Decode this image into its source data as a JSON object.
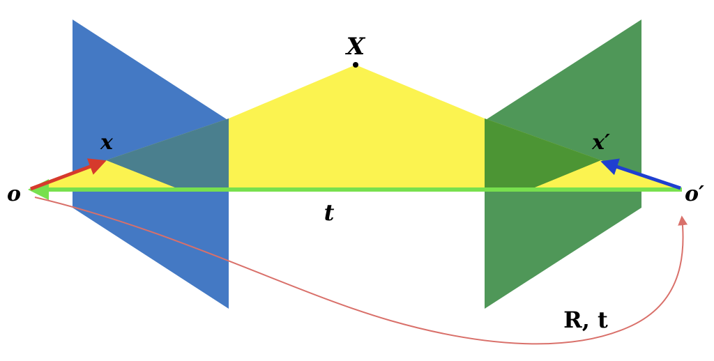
{
  "labels": {
    "point_X": "X",
    "image_point_x": "x",
    "image_point_x_prime": "x′",
    "center_o": "o",
    "center_o_prime": "o′",
    "baseline_t": "t",
    "transform": "R, t"
  },
  "colors": {
    "left_plane": "#4479c4",
    "right_plane": "#4f9758",
    "epipolar_plane": "#fbf350",
    "baseline": "#78e04e",
    "ray_left": "#d63a2c",
    "ray_right": "#1f3fd0",
    "transform_arc": "#d9706a",
    "overlap_left": "#4a7f8e",
    "overlap_right": "#4c9534"
  }
}
